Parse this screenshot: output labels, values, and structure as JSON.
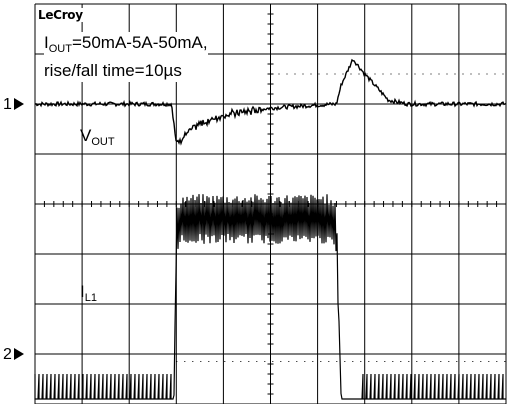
{
  "brand": "LeCroy",
  "annotation": {
    "line1_pre": "I",
    "line1_sub": "OUT",
    "line1_post": "=50mA-5A-50mA,",
    "line2": "rise/fall time=10µs"
  },
  "channels": [
    {
      "marker": "1",
      "label_main": "V",
      "label_sub": "OUT"
    },
    {
      "marker": "2",
      "label_main": "I",
      "label_sub": "L1"
    }
  ],
  "chart_data": {
    "type": "line",
    "title": "",
    "xlabel": "",
    "ylabel": "",
    "grid": true,
    "grid_divisions": {
      "x": 10,
      "y": 8
    },
    "x_range_div": [
      0,
      10
    ],
    "y_range_div": [
      0,
      8
    ],
    "series": [
      {
        "name": "VOUT",
        "channel": 1,
        "ground_div": 6.0,
        "points": [
          [
            0,
            6.0
          ],
          [
            2.9,
            6.0
          ],
          [
            3.0,
            5.2
          ],
          [
            3.15,
            5.35
          ],
          [
            3.5,
            5.6
          ],
          [
            4.0,
            5.78
          ],
          [
            5.0,
            5.92
          ],
          [
            6.0,
            5.98
          ],
          [
            6.4,
            6.0
          ],
          [
            6.5,
            6.38
          ],
          [
            6.75,
            6.9
          ],
          [
            7.0,
            6.6
          ],
          [
            7.5,
            6.08
          ],
          [
            7.9,
            6.0
          ],
          [
            10,
            6.0
          ]
        ],
        "noise_div": 0.04
      },
      {
        "name": "IL1",
        "channel": 2,
        "ground_div": 0.1,
        "points": [
          [
            0,
            0.1
          ],
          [
            2.95,
            0.1
          ],
          [
            3.0,
            3.4
          ],
          [
            3.1,
            3.7
          ],
          [
            6.2,
            3.7
          ],
          [
            6.4,
            3.5
          ],
          [
            6.5,
            0.1
          ],
          [
            10,
            0.1
          ]
        ],
        "ripple_div": 0.5,
        "pulse_div": 0.5
      }
    ]
  }
}
